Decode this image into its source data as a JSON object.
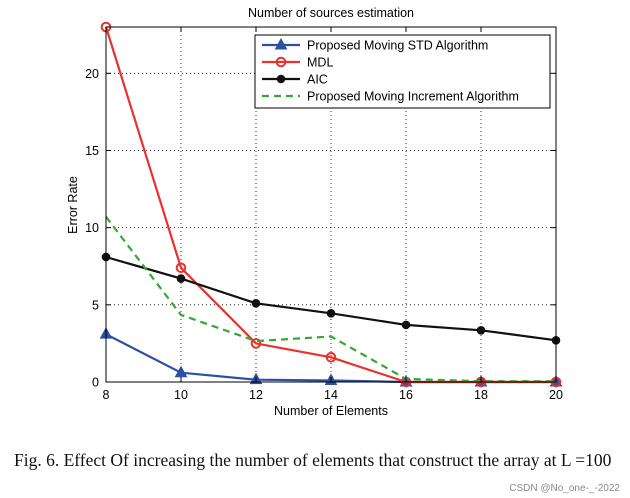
{
  "chart_data": {
    "type": "line",
    "title": "Number of sources estimation",
    "xlabel": "Number of Elements",
    "ylabel": "Error Rate",
    "xlim": [
      8,
      20
    ],
    "ylim": [
      0,
      23
    ],
    "xticks": [
      8,
      10,
      12,
      14,
      16,
      18,
      20
    ],
    "yticks": [
      0,
      5,
      10,
      15,
      20
    ],
    "grid": true,
    "legend_position": "top-right",
    "x": [
      8,
      10,
      12,
      14,
      16,
      18,
      20
    ],
    "series": [
      {
        "name": "Proposed Moving STD Algorithm",
        "values": [
          3.1,
          0.6,
          0.15,
          0.1,
          0.0,
          0.0,
          0.0
        ],
        "color": "#2f4fa2",
        "marker": "triangle",
        "dash": "solid"
      },
      {
        "name": "MDL",
        "values": [
          23.0,
          7.4,
          2.5,
          1.6,
          0.0,
          0.0,
          0.0
        ],
        "color": "#e8322d",
        "marker": "circle",
        "dash": "solid"
      },
      {
        "name": "AIC",
        "values": [
          8.1,
          6.7,
          5.1,
          4.45,
          3.7,
          3.35,
          2.7
        ],
        "color": "#111111",
        "marker": "dot",
        "dash": "solid"
      },
      {
        "name": "Proposed Moving Increment Algorithm",
        "values": [
          10.7,
          4.35,
          2.65,
          2.95,
          0.2,
          0.05,
          0.05
        ],
        "color": "#33a833",
        "marker": "none",
        "dash": "dashed"
      }
    ]
  },
  "caption": {
    "text": "Fig. 6.   Effect Of increasing the number of elements that construct the array at L =100"
  },
  "watermark": "CSDN @No_one-_-2022"
}
